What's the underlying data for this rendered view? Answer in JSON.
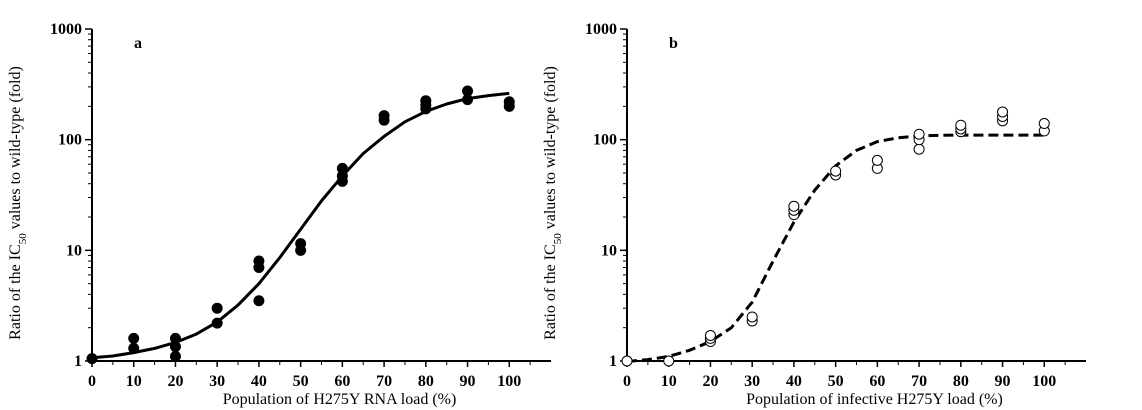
{
  "chart_data": [
    {
      "type": "scatter",
      "panel_label": "a",
      "xlabel": "Population of H275Y RNA load (%)",
      "ylabel_prefix": "Ratio of the IC",
      "ylabel_sub": "50",
      "ylabel_suffix": " values to wild-type (fold)",
      "xlim": [
        0,
        110
      ],
      "ylim": [
        1,
        1000
      ],
      "y_scale": "log",
      "x_ticks": [
        "0",
        "10",
        "20",
        "30",
        "40",
        "50",
        "60",
        "70",
        "80",
        "90",
        "100"
      ],
      "y_ticks": [
        "1",
        "10",
        "100",
        "1000"
      ],
      "marker": "filled",
      "curve_style": "solid",
      "points": [
        [
          0,
          1.05
        ],
        [
          10,
          1.3
        ],
        [
          10,
          1.6
        ],
        [
          20,
          1.1
        ],
        [
          20,
          1.35
        ],
        [
          20,
          1.6
        ],
        [
          30,
          2.2
        ],
        [
          30,
          3.0
        ],
        [
          40,
          3.5
        ],
        [
          40,
          7.0
        ],
        [
          40,
          8.0
        ],
        [
          50,
          10.0
        ],
        [
          50,
          11.5
        ],
        [
          60,
          42
        ],
        [
          60,
          47
        ],
        [
          60,
          55
        ],
        [
          70,
          150
        ],
        [
          70,
          165
        ],
        [
          80,
          190
        ],
        [
          80,
          205
        ],
        [
          80,
          225
        ],
        [
          90,
          230
        ],
        [
          90,
          275
        ],
        [
          100,
          200
        ],
        [
          100,
          220
        ]
      ],
      "fit_curve": {
        "x": [
          0,
          5,
          10,
          15,
          20,
          25,
          30,
          35,
          40,
          45,
          50,
          55,
          60,
          65,
          70,
          75,
          80,
          85,
          90,
          95,
          100
        ],
        "y": [
          1.07,
          1.11,
          1.19,
          1.3,
          1.47,
          1.75,
          2.25,
          3.2,
          5.0,
          8.6,
          15.5,
          28,
          47,
          75,
          107,
          145,
          180,
          210,
          235,
          250,
          262
        ]
      }
    },
    {
      "type": "scatter",
      "panel_label": "b",
      "xlabel": "Population of infective H275Y load (%)",
      "ylabel_prefix": "Ratio of the IC",
      "ylabel_sub": "50",
      "ylabel_suffix": " values to wild-type (fold)",
      "xlim": [
        0,
        110
      ],
      "ylim": [
        1,
        1000
      ],
      "y_scale": "log",
      "x_ticks": [
        "0",
        "10",
        "20",
        "30",
        "40",
        "50",
        "60",
        "70",
        "80",
        "90",
        "100"
      ],
      "y_ticks": [
        "1",
        "10",
        "100",
        "1000"
      ],
      "marker": "open",
      "curve_style": "dashed",
      "points": [
        [
          0,
          1.0
        ],
        [
          10,
          1.0
        ],
        [
          20,
          1.5
        ],
        [
          20,
          1.6
        ],
        [
          20,
          1.7
        ],
        [
          30,
          2.3
        ],
        [
          30,
          2.5
        ],
        [
          40,
          21
        ],
        [
          40,
          23
        ],
        [
          40,
          25
        ],
        [
          50,
          48
        ],
        [
          50,
          52
        ],
        [
          60,
          55
        ],
        [
          60,
          65
        ],
        [
          70,
          82
        ],
        [
          70,
          100
        ],
        [
          70,
          112
        ],
        [
          80,
          118
        ],
        [
          80,
          125
        ],
        [
          80,
          135
        ],
        [
          90,
          148
        ],
        [
          90,
          162
        ],
        [
          90,
          178
        ],
        [
          100,
          120
        ],
        [
          100,
          140
        ]
      ],
      "fit_curve": {
        "x": [
          0,
          5,
          10,
          15,
          20,
          25,
          30,
          35,
          40,
          45,
          50,
          55,
          60,
          65,
          70,
          75,
          80,
          85,
          90,
          95,
          100
        ],
        "y": [
          0.99,
          1.03,
          1.1,
          1.25,
          1.5,
          2.0,
          3.4,
          8.0,
          18,
          35,
          58,
          80,
          96,
          104,
          108,
          109.5,
          110,
          110,
          110,
          110,
          110
        ]
      }
    }
  ]
}
